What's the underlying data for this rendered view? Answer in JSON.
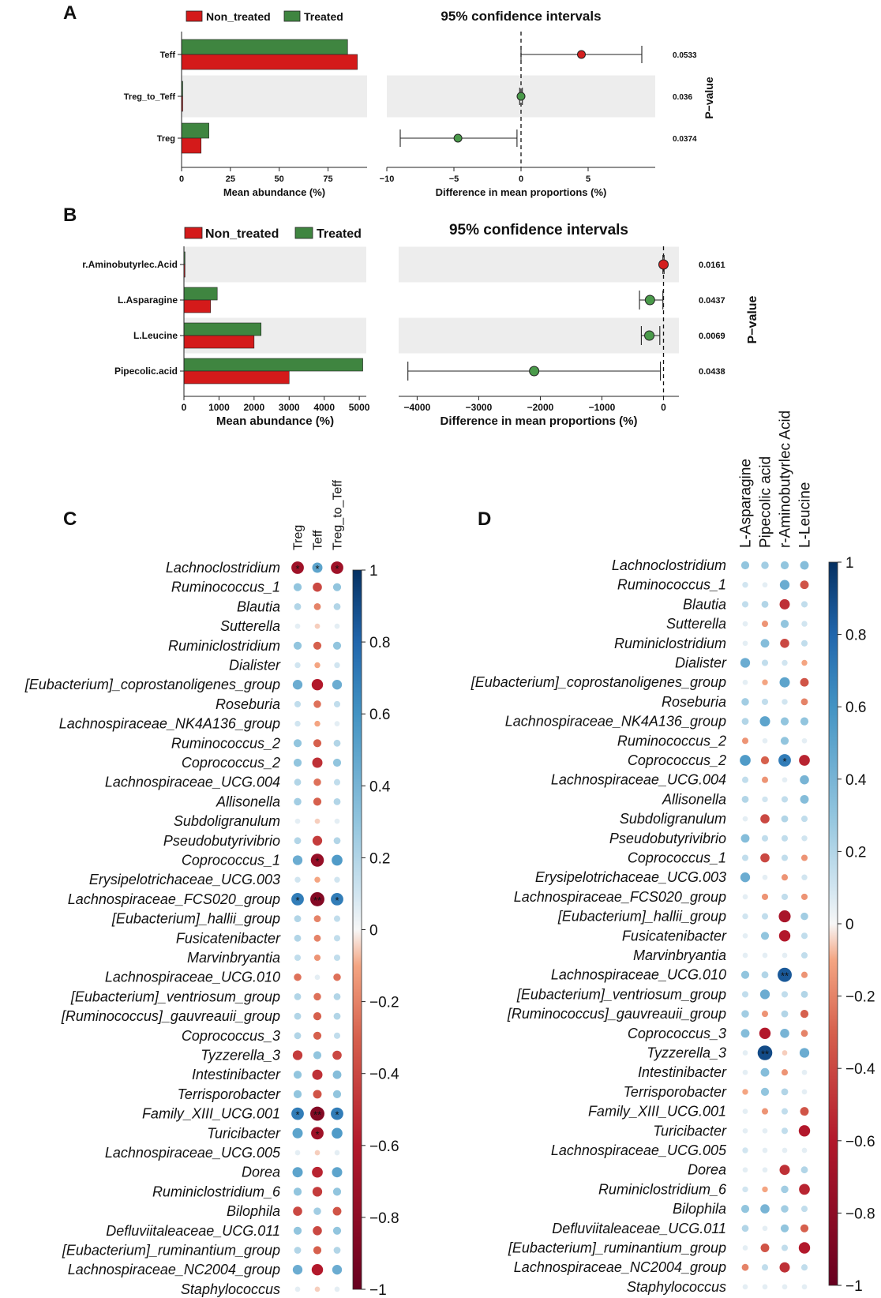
{
  "panels": {
    "a": "A",
    "b": "B",
    "c": "C",
    "d": "D"
  },
  "legend": {
    "non_treated": "Non_treated",
    "treated": "Treated"
  },
  "colors": {
    "non_treated": "#d41a1a",
    "treated": "#3f8540",
    "shade": "#ededed",
    "ci_red": "#d42020",
    "ci_green": "#4a9a4a"
  },
  "chart_data": [
    {
      "id": "A_bar",
      "type": "bar",
      "orientation": "horizontal",
      "categories": [
        "Teff",
        "Treg_to_Teff",
        "Treg"
      ],
      "series": [
        {
          "name": "Treated",
          "values": [
            85,
            0.6,
            14
          ]
        },
        {
          "name": "Non_treated",
          "values": [
            90,
            0.6,
            10
          ]
        }
      ],
      "xlim": [
        0,
        95
      ],
      "xticks": [
        0,
        25,
        50,
        75
      ],
      "tick_labels": [
        "0",
        "25",
        "50",
        "75"
      ],
      "xlabel": "Mean abundance (%)"
    },
    {
      "id": "A_ci",
      "type": "scatter",
      "title": "95% confidence intervals",
      "categories": [
        "Teff",
        "Treg_to_Teff",
        "Treg"
      ],
      "estimate": [
        4.5,
        0.0,
        -4.7
      ],
      "lower": [
        0.0,
        -0.1,
        -9.0
      ],
      "upper": [
        9.0,
        0.1,
        -0.3
      ],
      "point_group": [
        "Non_treated",
        "Treated",
        "Treated"
      ],
      "pvalues": [
        "0.0533",
        "0.036",
        "0.0374"
      ],
      "xlim": [
        -10,
        10
      ],
      "xticks": [
        -10,
        -5,
        0,
        5
      ],
      "tick_labels": [
        "−10",
        "−5",
        "0",
        "5"
      ],
      "xlabel": "Difference in mean proportions (%)",
      "pvalue_label": "P−value"
    },
    {
      "id": "B_bar",
      "type": "bar",
      "orientation": "horizontal",
      "categories": [
        "r.Aminobutyrlec.Acid",
        "L.Asparagine",
        "L.Leucine",
        "Pipecolic.acid"
      ],
      "series": [
        {
          "name": "Treated",
          "values": [
            30,
            950,
            2200,
            5100
          ]
        },
        {
          "name": "Non_treated",
          "values": [
            30,
            760,
            2000,
            3000
          ]
        }
      ],
      "xlim": [
        0,
        5200
      ],
      "xticks": [
        0,
        1000,
        2000,
        3000,
        4000,
        5000
      ],
      "tick_labels": [
        "0",
        "1000",
        "2000",
        "3000",
        "4000",
        "5000"
      ],
      "xlabel": "Mean abundance (%)"
    },
    {
      "id": "B_ci",
      "type": "scatter",
      "title": "95% confidence intervals",
      "categories": [
        "r.Aminobutyrlec.Acid",
        "L.Asparagine",
        "L.Leucine",
        "Pipecolic.acid"
      ],
      "estimate": [
        0,
        -220,
        -230,
        -2100
      ],
      "lower": [
        -10,
        -390,
        -360,
        -4150
      ],
      "upper": [
        10,
        -10,
        -60,
        -50
      ],
      "point_group": [
        "Non_treated",
        "Treated",
        "Treated",
        "Treated"
      ],
      "pvalues": [
        "0.0161",
        "0.0437",
        "0.0069",
        "0.0438"
      ],
      "xlim": [
        -4300,
        250
      ],
      "xticks": [
        -4000,
        -3000,
        -2000,
        -1000,
        0
      ],
      "tick_labels": [
        "−4000",
        "−3000",
        "−2000",
        "−1000",
        "0"
      ],
      "xlabel": "Difference in mean proportions (%)",
      "pvalue_label": "P−value"
    },
    {
      "id": "C",
      "type": "heatmap",
      "columns": [
        "Treg",
        "Teff",
        "Treg_to_Teff"
      ],
      "rows": [
        "Lachnoclostridium",
        "Ruminococcus_1",
        "Blautia",
        "Sutterella",
        "Ruminiclostridium",
        "Dialister",
        "[Eubacterium]_coprostanoligenes_group",
        "Roseburia",
        "Lachnospiraceae_NK4A136_group",
        "Ruminococcus_2",
        "Coprococcus_2",
        "Lachnospiraceae_UCG.004",
        "Allisonella",
        "Subdoligranulum",
        "Pseudobutyrivibrio",
        "Coprococcus_1",
        "Erysipelotrichaceae_UCG.003",
        "Lachnospiraceae_FCS020_group",
        "[Eubacterium]_hallii_group",
        "Fusicatenibacter",
        "Marvinbryantia",
        "Lachnospiraceae_UCG.010",
        "[Eubacterium]_ventriosum_group",
        "[Ruminococcus]_gauvreauii_group",
        "Coprococcus_3",
        "Tyzzerella_3",
        "Intestinibacter",
        "Terrisporobacter",
        "Family_XIII_UCG.001",
        "Turicibacter",
        "Lachnospiraceae_UCG.005",
        "Dorea",
        "Ruminiclostridium_6",
        "Bilophila",
        "Defluviitaleaceae_UCG.011",
        "[Eubacterium]_ruminantium_group",
        "Lachnospiraceae_NC2004_group",
        "Staphylococcus"
      ],
      "values": [
        [
          -0.7,
          0.5,
          -0.7
        ],
        [
          0.3,
          -0.4,
          0.3
        ],
        [
          0.2,
          -0.2,
          0.2
        ],
        [
          0.05,
          -0.05,
          0.05
        ],
        [
          0.3,
          -0.3,
          0.3
        ],
        [
          0.1,
          -0.1,
          0.1
        ],
        [
          0.45,
          -0.6,
          0.45
        ],
        [
          0.15,
          -0.25,
          0.15
        ],
        [
          0.1,
          -0.1,
          0.05
        ],
        [
          0.3,
          -0.3,
          0.2
        ],
        [
          0.3,
          -0.5,
          0.3
        ],
        [
          0.2,
          -0.25,
          0.15
        ],
        [
          0.25,
          -0.3,
          0.2
        ],
        [
          0.05,
          -0.05,
          0.05
        ],
        [
          0.2,
          -0.45,
          0.2
        ],
        [
          0.45,
          -0.75,
          0.55
        ],
        [
          0.1,
          -0.1,
          0.1
        ],
        [
          0.7,
          -0.85,
          0.7
        ],
        [
          0.2,
          -0.2,
          0.15
        ],
        [
          0.2,
          -0.2,
          0.15
        ],
        [
          0.15,
          -0.15,
          0.15
        ],
        [
          -0.25,
          0.05,
          -0.25
        ],
        [
          0.2,
          -0.25,
          0.2
        ],
        [
          0.2,
          -0.3,
          0.2
        ],
        [
          0.2,
          -0.3,
          0.15
        ],
        [
          -0.45,
          0.3,
          -0.4
        ],
        [
          0.3,
          -0.5,
          0.35
        ],
        [
          0.3,
          -0.35,
          0.3
        ],
        [
          0.7,
          -0.85,
          0.7
        ],
        [
          0.5,
          -0.7,
          0.55
        ],
        [
          0.05,
          -0.05,
          0.05
        ],
        [
          0.5,
          -0.55,
          0.5
        ],
        [
          0.3,
          -0.45,
          0.3
        ],
        [
          -0.4,
          0.25,
          -0.35
        ],
        [
          0.3,
          -0.4,
          0.3
        ],
        [
          0.2,
          -0.3,
          0.2
        ],
        [
          0.45,
          -0.6,
          0.45
        ],
        [
          0.05,
          -0.05,
          0.05
        ]
      ],
      "stars": [
        [
          "*",
          "*",
          "*"
        ],
        [
          "",
          "",
          ""
        ],
        [
          "",
          "",
          ""
        ],
        [
          "",
          "",
          ""
        ],
        [
          "",
          "",
          ""
        ],
        [
          "",
          "",
          ""
        ],
        [
          "",
          "",
          ""
        ],
        [
          "",
          "",
          ""
        ],
        [
          "",
          "",
          ""
        ],
        [
          "",
          "",
          ""
        ],
        [
          "",
          "",
          ""
        ],
        [
          "",
          "",
          ""
        ],
        [
          "",
          "",
          ""
        ],
        [
          "",
          "",
          ""
        ],
        [
          "",
          "",
          ""
        ],
        [
          "",
          "*",
          ""
        ],
        [
          "",
          "",
          ""
        ],
        [
          "*",
          "**",
          "*"
        ],
        [
          "",
          "",
          ""
        ],
        [
          "",
          "",
          ""
        ],
        [
          "",
          "",
          ""
        ],
        [
          "",
          "",
          ""
        ],
        [
          "",
          "",
          ""
        ],
        [
          "",
          "",
          ""
        ],
        [
          "",
          "",
          ""
        ],
        [
          "",
          "",
          ""
        ],
        [
          "",
          "",
          ""
        ],
        [
          "",
          "",
          ""
        ],
        [
          "*",
          "**",
          "*"
        ],
        [
          "",
          "*",
          ""
        ],
        [
          "",
          "",
          ""
        ],
        [
          "",
          "",
          ""
        ],
        [
          "",
          "",
          ""
        ],
        [
          "",
          "",
          ""
        ],
        [
          "",
          "",
          ""
        ],
        [
          "",
          "",
          ""
        ],
        [
          "",
          "",
          ""
        ],
        [
          "",
          "",
          ""
        ]
      ],
      "color_range": [
        -1,
        1
      ],
      "colorbar_ticks": [
        "1",
        "0.8",
        "0.6",
        "0.4",
        "0.2",
        "0",
        "−0.2",
        "−0.4",
        "−0.6",
        "−0.8",
        "−1"
      ]
    },
    {
      "id": "D",
      "type": "heatmap",
      "columns": [
        "L-Asparagine",
        "Pipecolic acid",
        "r-Aminobutyrlec Acid",
        "L-Leucine"
      ],
      "rows": [
        "Lachnoclostridium",
        "Ruminococcus_1",
        "Blautia",
        "Sutterella",
        "Ruminiclostridium",
        "Dialister",
        "[Eubacterium]_coprostanoligenes_group",
        "Roseburia",
        "Lachnospiraceae_NK4A136_group",
        "Ruminococcus_2",
        "Coprococcus_2",
        "Lachnospiraceae_UCG.004",
        "Allisonella",
        "Subdoligranulum",
        "Pseudobutyrivibrio",
        "Coprococcus_1",
        "Erysipelotrichaceae_UCG.003",
        "Lachnospiraceae_FCS020_group",
        "[Eubacterium]_hallii_group",
        "Fusicatenibacter",
        "Marvinbryantia",
        "Lachnospiraceae_UCG.010",
        "[Eubacterium]_ventriosum_group",
        "[Ruminococcus]_gauvreauii_group",
        "Coprococcus_3",
        "Tyzzerella_3",
        "Intestinibacter",
        "Terrisporobacter",
        "Family_XIII_UCG.001",
        "Turicibacter",
        "Lachnospiraceae_UCG.005",
        "Dorea",
        "Ruminiclostridium_6",
        "Bilophila",
        "Defluviitaleaceae_UCG.011",
        "[Eubacterium]_ruminantium_group",
        "Lachnospiraceae_NC2004_group",
        "Staphylococcus"
      ],
      "values": [
        [
          0.3,
          0.25,
          0.3,
          0.35
        ],
        [
          0.1,
          0.05,
          0.45,
          -0.35
        ],
        [
          0.15,
          0.2,
          -0.5,
          0.15
        ],
        [
          0.05,
          -0.15,
          0.3,
          0.1
        ],
        [
          0.05,
          0.35,
          -0.4,
          0.15
        ],
        [
          0.45,
          0.15,
          0.1,
          -0.1
        ],
        [
          0.05,
          -0.1,
          0.5,
          -0.35
        ],
        [
          0.25,
          0.15,
          0.1,
          -0.2
        ],
        [
          0.2,
          0.5,
          0.3,
          0.3
        ],
        [
          -0.15,
          0.05,
          0.3,
          0.05
        ],
        [
          0.55,
          -0.3,
          0.7,
          -0.55
        ],
        [
          0.15,
          -0.15,
          0.05,
          0.4
        ],
        [
          0.2,
          0.1,
          0.15,
          0.35
        ],
        [
          0.05,
          -0.4,
          0.2,
          0.15
        ],
        [
          0.35,
          0.15,
          0.15,
          0.1
        ],
        [
          0.15,
          -0.4,
          0.15,
          -0.15
        ],
        [
          0.45,
          0.05,
          -0.15,
          0.1
        ],
        [
          0.05,
          -0.15,
          0.15,
          -0.15
        ],
        [
          0.1,
          0.15,
          -0.65,
          0.25
        ],
        [
          0.05,
          0.3,
          -0.6,
          0.15
        ],
        [
          0.05,
          0.05,
          0.05,
          0.15
        ],
        [
          0.3,
          0.2,
          0.85,
          -0.15
        ],
        [
          0.15,
          0.45,
          0.15,
          0.2
        ],
        [
          0.25,
          -0.15,
          0.2,
          -0.3
        ],
        [
          0.35,
          -0.6,
          0.4,
          -0.2
        ],
        [
          0.05,
          0.9,
          -0.05,
          0.45
        ],
        [
          0.05,
          0.35,
          -0.15,
          0.05
        ],
        [
          -0.1,
          0.3,
          0.2,
          0.05
        ],
        [
          0.05,
          -0.15,
          0.15,
          -0.35
        ],
        [
          0.05,
          0.05,
          0.15,
          -0.6
        ],
        [
          0.1,
          0.05,
          0.05,
          0.05
        ],
        [
          0.05,
          0.05,
          -0.5,
          0.2
        ],
        [
          0.1,
          -0.1,
          0.25,
          -0.55
        ],
        [
          0.3,
          0.4,
          0.25,
          0.15
        ],
        [
          0.2,
          0.05,
          0.3,
          -0.3
        ],
        [
          0.05,
          -0.35,
          0.15,
          -0.6
        ],
        [
          -0.2,
          0.15,
          -0.5,
          0.15
        ],
        [
          0.05,
          0.05,
          0.05,
          0.05
        ]
      ],
      "stars": [
        [
          "",
          "",
          "",
          ""
        ],
        [
          "",
          "",
          "",
          ""
        ],
        [
          "",
          "",
          "",
          ""
        ],
        [
          "",
          "",
          "",
          ""
        ],
        [
          "",
          "",
          "",
          ""
        ],
        [
          "",
          "",
          "",
          ""
        ],
        [
          "",
          "",
          "",
          ""
        ],
        [
          "",
          "",
          "",
          ""
        ],
        [
          "",
          "",
          "",
          ""
        ],
        [
          "",
          "",
          "",
          ""
        ],
        [
          "",
          "",
          "*",
          ""
        ],
        [
          "",
          "",
          "",
          ""
        ],
        [
          "",
          "",
          "",
          ""
        ],
        [
          "",
          "",
          "",
          ""
        ],
        [
          "",
          "",
          "",
          ""
        ],
        [
          "",
          "",
          "",
          ""
        ],
        [
          "",
          "",
          "",
          ""
        ],
        [
          "",
          "",
          "",
          ""
        ],
        [
          "",
          "",
          "",
          ""
        ],
        [
          "",
          "",
          "",
          ""
        ],
        [
          "",
          "",
          "",
          ""
        ],
        [
          "",
          "",
          "**",
          ""
        ],
        [
          "",
          "",
          "",
          ""
        ],
        [
          "",
          "",
          "",
          ""
        ],
        [
          "",
          "",
          "",
          ""
        ],
        [
          "",
          "**",
          "",
          ""
        ],
        [
          "",
          "",
          "",
          ""
        ],
        [
          "",
          "",
          "",
          ""
        ],
        [
          "",
          "",
          "",
          ""
        ],
        [
          "",
          "",
          "",
          ""
        ],
        [
          "",
          "",
          "",
          ""
        ],
        [
          "",
          "",
          "",
          ""
        ],
        [
          "",
          "",
          "",
          ""
        ],
        [
          "",
          "",
          "",
          ""
        ],
        [
          "",
          "",
          "",
          ""
        ],
        [
          "",
          "",
          "",
          ""
        ],
        [
          "",
          "",
          "",
          ""
        ],
        [
          "",
          "",
          "",
          ""
        ]
      ],
      "color_range": [
        -1,
        1
      ],
      "colorbar_ticks": [
        "1",
        "0.8",
        "0.6",
        "0.4",
        "0.2",
        "0",
        "−0.2",
        "−0.4",
        "−0.6",
        "−0.8",
        "−1"
      ]
    }
  ]
}
